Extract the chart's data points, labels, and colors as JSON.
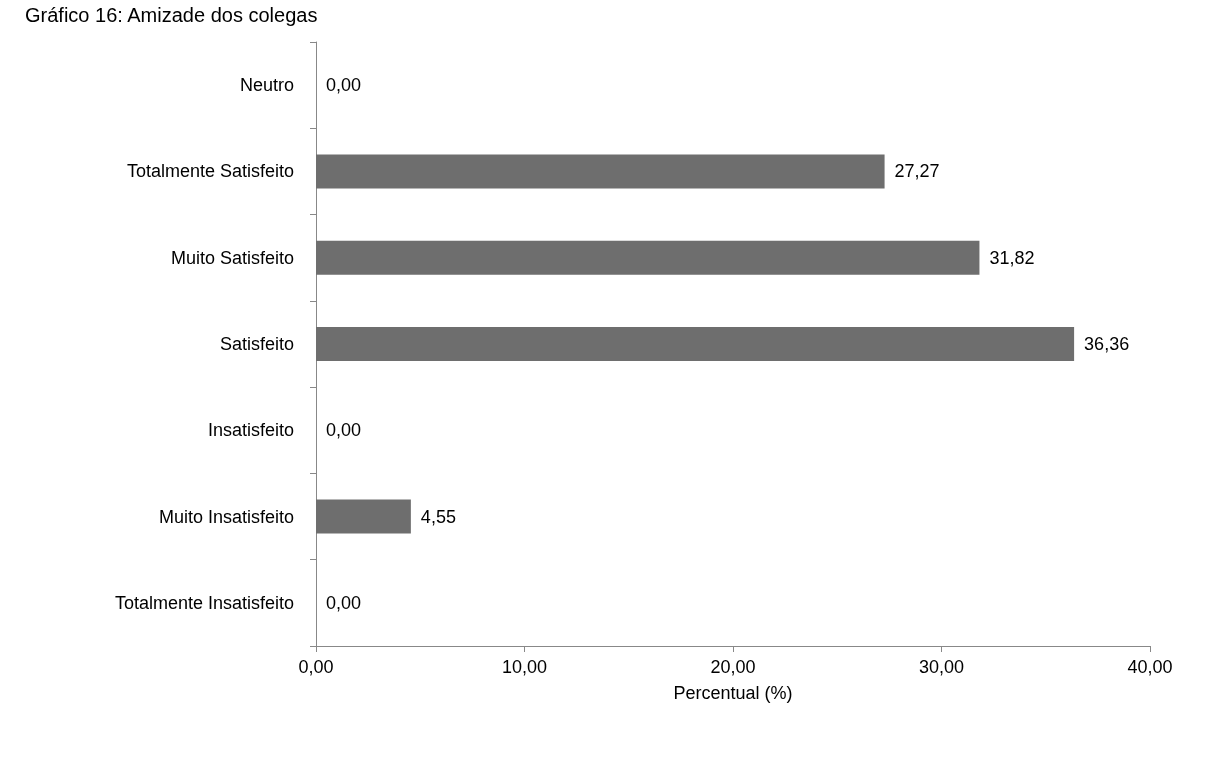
{
  "chart_data": {
    "type": "bar",
    "orientation": "horizontal",
    "title": "Gráfico 16: Amizade dos colegas",
    "xlabel": "Percentual (%)",
    "categories": [
      "Neutro",
      "Totalmente Satisfeito",
      "Muito Satisfeito",
      "Satisfeito",
      "Insatisfeito",
      "Muito Insatisfeito",
      "Totalmente Insatisfeito"
    ],
    "values": [
      0,
      27.27,
      31.82,
      36.36,
      0,
      4.55,
      0
    ],
    "value_labels": [
      "0,00",
      "27,27",
      "31,82",
      "36,36",
      "0,00",
      "4,55",
      "0,00"
    ],
    "color": "#6e6e6e",
    "xlim": [
      0,
      40
    ],
    "xticks": [
      {
        "value": 0,
        "label": "0,00"
      },
      {
        "value": 10,
        "label": "10,00"
      },
      {
        "value": 20,
        "label": "20,00"
      },
      {
        "value": 30,
        "label": "30,00"
      },
      {
        "value": 40,
        "label": "40,00"
      }
    ],
    "grid": false
  }
}
